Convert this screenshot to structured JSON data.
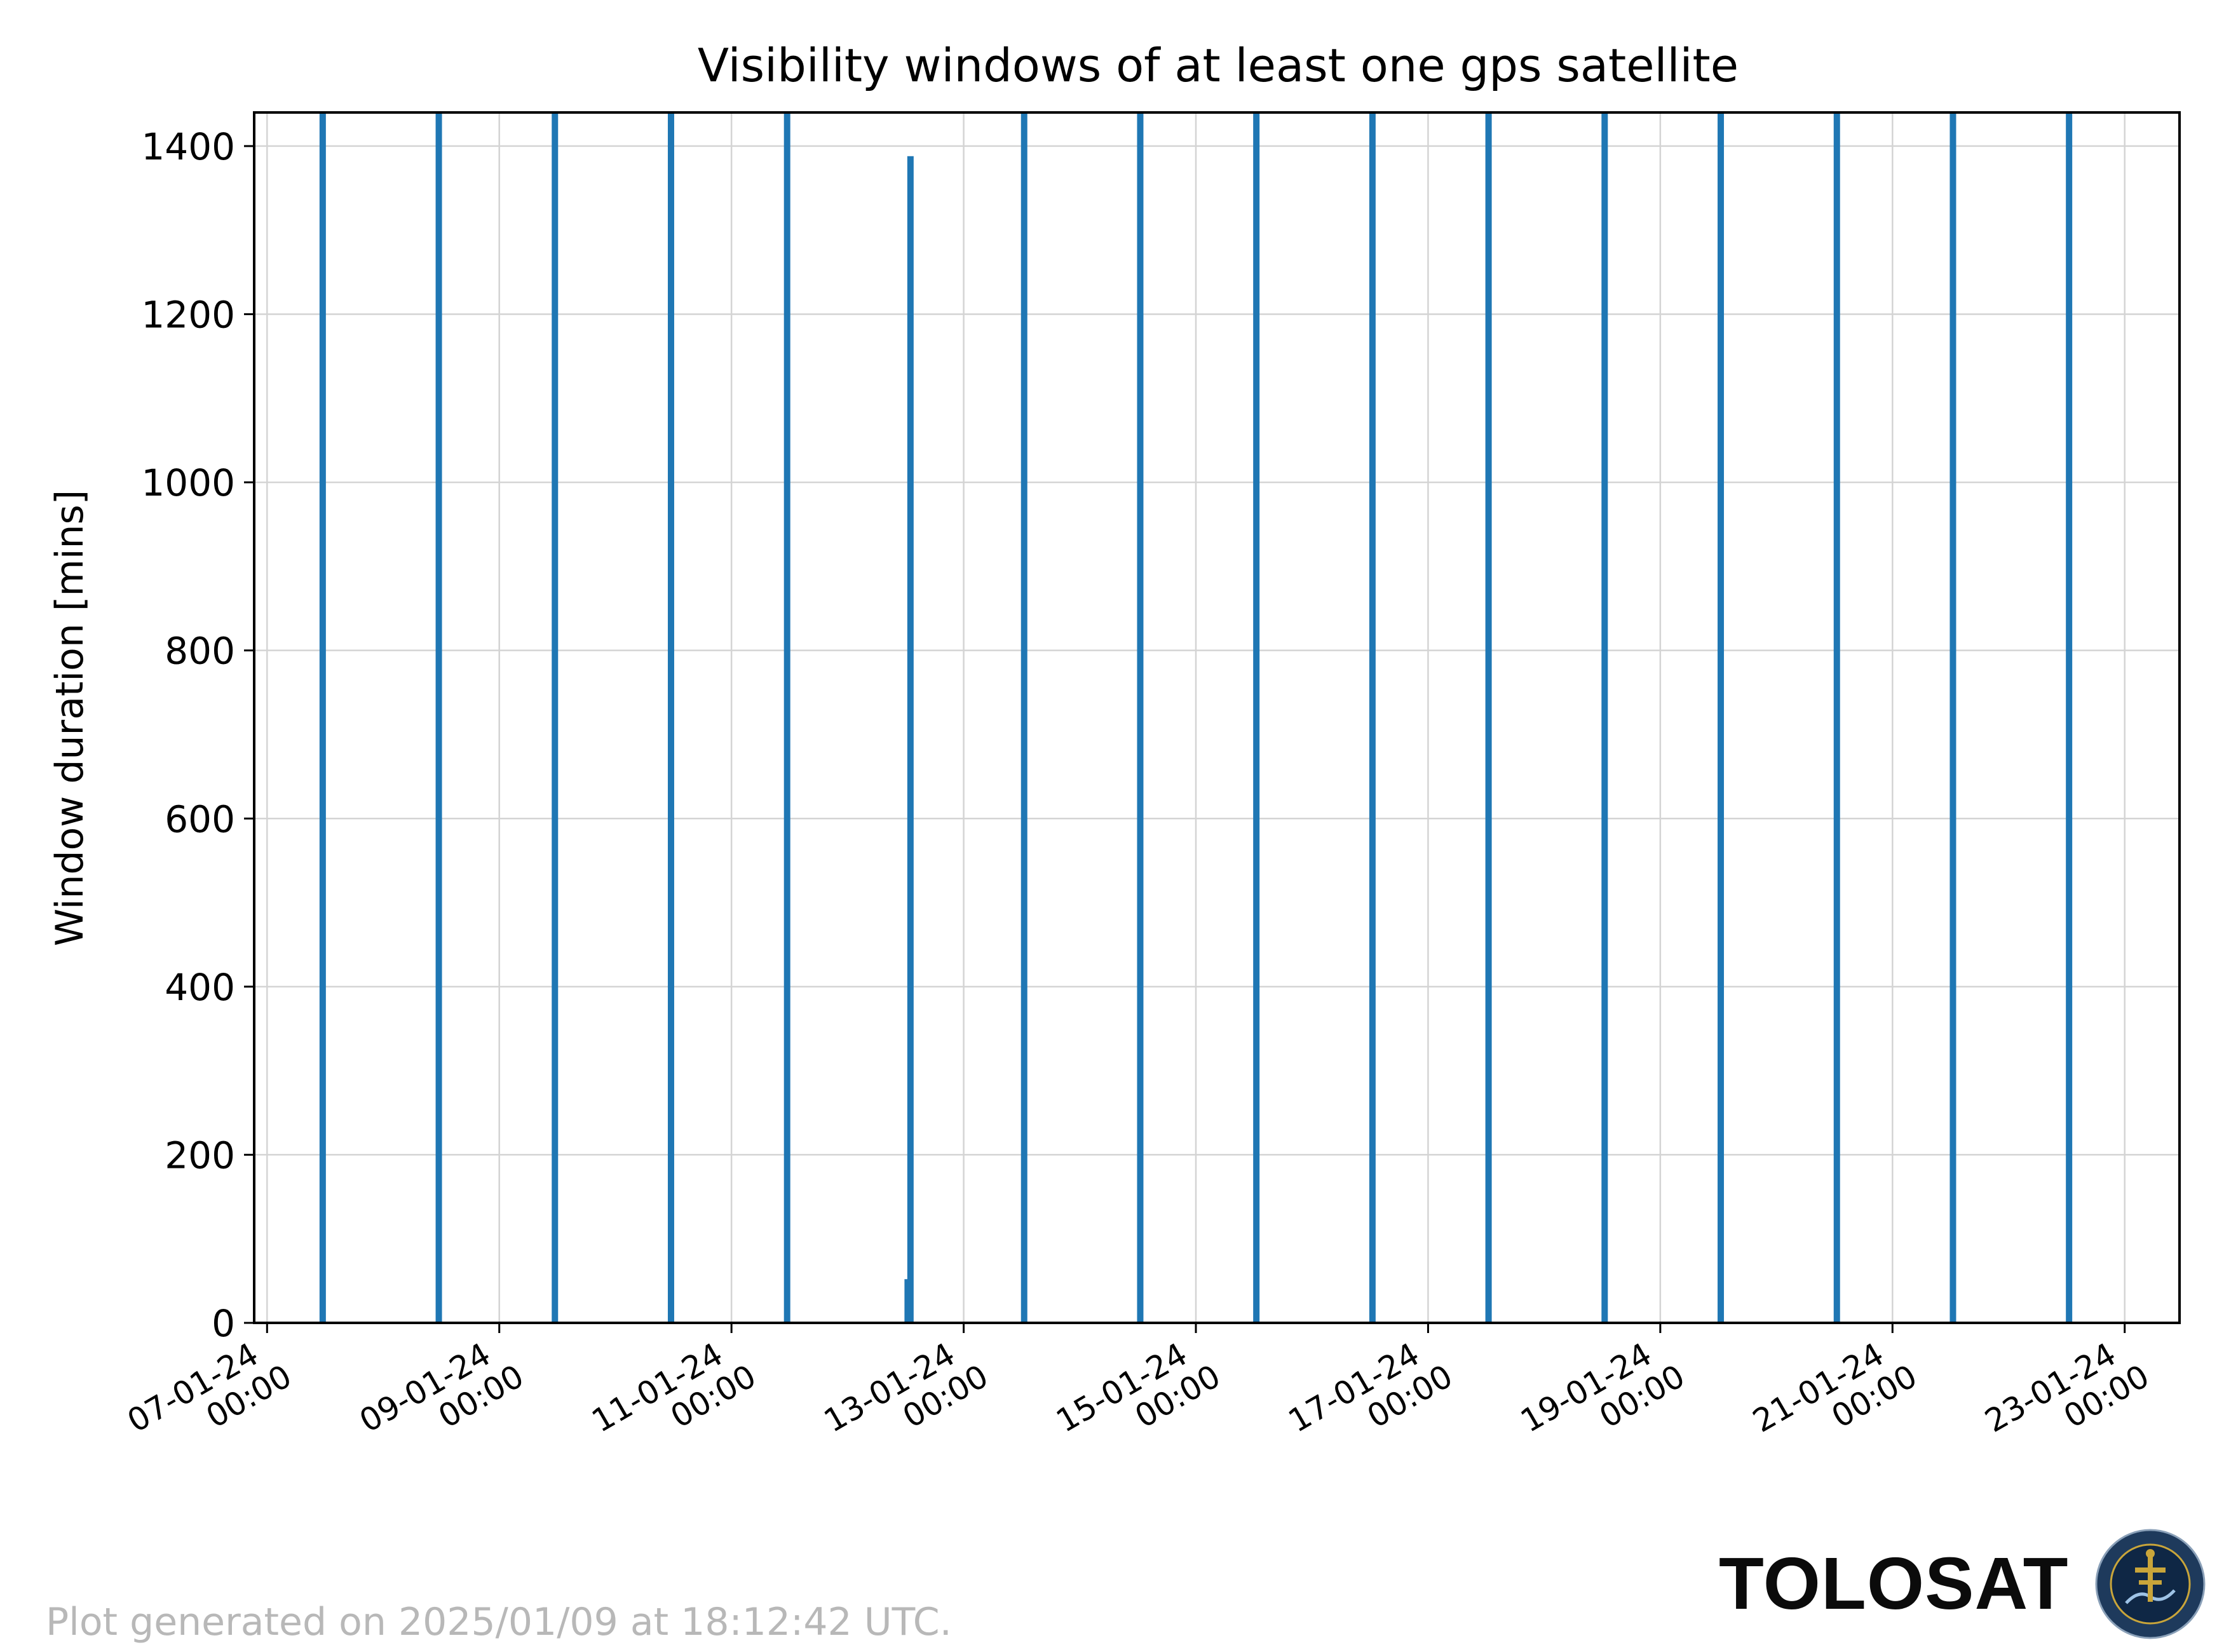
{
  "chart_data": {
    "type": "bar",
    "title": "Visibility windows of at least one gps satellite",
    "xlabel": "",
    "ylabel": "Window duration [mins]",
    "xlim": [
      "2024-01-06T21:20",
      "2024-01-23T11:20"
    ],
    "ylim": [
      0,
      1440
    ],
    "yticks": [
      0,
      200,
      400,
      600,
      800,
      1000,
      1200,
      1400
    ],
    "xticks": [
      {
        "date": "2024-01-07T00:00",
        "line1": "07-01-24",
        "line2": "00:00"
      },
      {
        "date": "2024-01-09T00:00",
        "line1": "09-01-24",
        "line2": "00:00"
      },
      {
        "date": "2024-01-11T00:00",
        "line1": "11-01-24",
        "line2": "00:00"
      },
      {
        "date": "2024-01-13T00:00",
        "line1": "13-01-24",
        "line2": "00:00"
      },
      {
        "date": "2024-01-15T00:00",
        "line1": "15-01-24",
        "line2": "00:00"
      },
      {
        "date": "2024-01-17T00:00",
        "line1": "17-01-24",
        "line2": "00:00"
      },
      {
        "date": "2024-01-19T00:00",
        "line1": "19-01-24",
        "line2": "00:00"
      },
      {
        "date": "2024-01-21T00:00",
        "line1": "21-01-24",
        "line2": "00:00"
      },
      {
        "date": "2024-01-23T00:00",
        "line1": "23-01-24",
        "line2": "00:00"
      }
    ],
    "grid": true,
    "color": "#1f77b4",
    "bars": [
      {
        "start": "2024-01-07T11:30",
        "value": 1440
      },
      {
        "start": "2024-01-08T11:30",
        "value": 1440
      },
      {
        "start": "2024-01-09T11:30",
        "value": 1440
      },
      {
        "start": "2024-01-10T11:30",
        "value": 1440
      },
      {
        "start": "2024-01-11T11:30",
        "value": 1440
      },
      {
        "start": "2024-01-12T12:25",
        "value": 52
      },
      {
        "start": "2024-01-12T13:00",
        "value": 1388
      },
      {
        "start": "2024-01-13T12:30",
        "value": 1440
      },
      {
        "start": "2024-01-14T12:30",
        "value": 1440
      },
      {
        "start": "2024-01-15T12:30",
        "value": 1440
      },
      {
        "start": "2024-01-16T12:30",
        "value": 1440
      },
      {
        "start": "2024-01-17T12:30",
        "value": 1440
      },
      {
        "start": "2024-01-18T12:30",
        "value": 1440
      },
      {
        "start": "2024-01-19T12:30",
        "value": 1440
      },
      {
        "start": "2024-01-20T12:30",
        "value": 1440
      },
      {
        "start": "2024-01-21T12:30",
        "value": 1440
      },
      {
        "start": "2024-01-22T12:30",
        "value": 1440
      }
    ]
  },
  "footer": {
    "note": "Plot generated on 2025/01/09 at 18:12:42 UTC.",
    "brand": "TOLOSAT"
  },
  "logo": {
    "ring_text": "ASTRE·CC SUPAERO·TOLOSAT",
    "colors": {
      "ring": "#1e3a5c",
      "core": "#0f2745",
      "accent": "#c9a53a"
    }
  }
}
